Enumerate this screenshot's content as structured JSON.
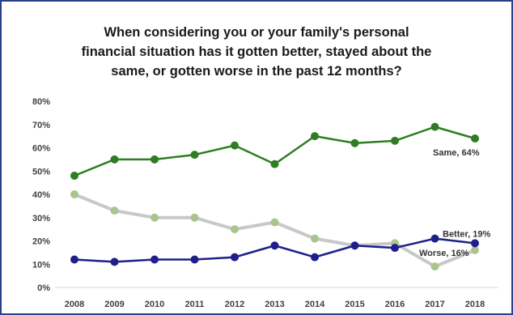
{
  "chart_data": {
    "type": "line",
    "title_lines": [
      "When considering you or your family's personal",
      "financial situation has it gotten better, stayed about the",
      "same, or gotten worse in the past 12 months?"
    ],
    "categories": [
      "2008",
      "2009",
      "2010",
      "2011",
      "2012",
      "2013",
      "2014",
      "2015",
      "2016",
      "2017",
      "2018"
    ],
    "y_ticks": [
      "0%",
      "10%",
      "20%",
      "30%",
      "40%",
      "50%",
      "60%",
      "70%",
      "80%"
    ],
    "ylim": [
      0,
      80
    ],
    "grid": false,
    "legend": "none",
    "series": [
      {
        "name": "Same",
        "color": "#2e7d22",
        "values": [
          48,
          55,
          55,
          57,
          61,
          53,
          65,
          62,
          63,
          69,
          64
        ],
        "label": "Same, 64%"
      },
      {
        "name": "Better",
        "color": "#1f1f8c",
        "values": [
          12,
          11,
          12,
          12,
          13,
          18,
          13,
          18,
          17,
          21,
          19
        ],
        "label": "Better, 19%"
      },
      {
        "name": "Worse",
        "color": "#c8c8c8",
        "marker_color": "#a9c48e",
        "values": [
          40,
          33,
          30,
          30,
          25,
          28,
          21,
          18,
          19,
          9,
          16
        ],
        "label": "Worse, 16%"
      }
    ]
  }
}
